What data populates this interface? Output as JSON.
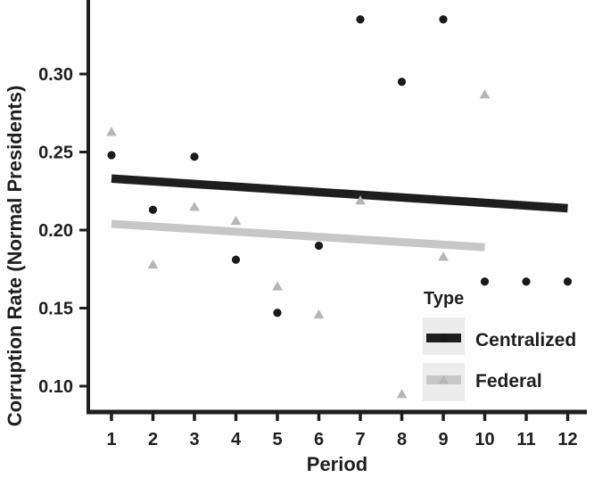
{
  "chart_data": {
    "type": "scatter",
    "title": "",
    "xlabel": "Period",
    "ylabel": "Corruption Rate (Normal Presidents)",
    "xlim": [
      0.46,
      12.33
    ],
    "ylim": [
      0.083,
      0.347
    ],
    "grid": false,
    "axis_color": "#1e1e1e",
    "x_ticks": [
      1,
      2,
      3,
      4,
      5,
      6,
      7,
      8,
      9,
      10,
      11,
      12
    ],
    "x_tick_labels": [
      "1",
      "2",
      "3",
      "4",
      "5",
      "6",
      "7",
      "8",
      "9",
      "10",
      "11",
      "12"
    ],
    "y_ticks": [
      0.1,
      0.15,
      0.2,
      0.25,
      0.3
    ],
    "y_tick_labels": [
      "0.10",
      "0.15",
      "0.20",
      "0.25",
      "0.30"
    ],
    "legend": {
      "title": "Type",
      "position": "inside bottom-right",
      "key_background": "#ececec",
      "entries": [
        {
          "name": "Centralized",
          "marker": "circle",
          "color": "#1a1a1a",
          "line_color": "#1e1e1e"
        },
        {
          "name": "Federal",
          "marker": "triangle",
          "color": "#b6b6b6",
          "line_color": "#c7c7c7"
        }
      ]
    },
    "series": [
      {
        "name": "Centralized",
        "marker": "circle",
        "color": "#1a1a1a",
        "x": [
          1,
          2,
          3,
          4,
          5,
          6,
          7,
          8,
          9,
          10,
          11,
          12
        ],
        "y": [
          0.248,
          0.213,
          0.247,
          0.181,
          0.147,
          0.19,
          0.335,
          0.295,
          0.335,
          0.167,
          0.167,
          0.167
        ],
        "trend": {
          "x": [
            1,
            12
          ],
          "y": [
            0.233,
            0.214
          ],
          "color": "#1e1e1e"
        }
      },
      {
        "name": "Federal",
        "marker": "triangle",
        "color": "#b6b6b6",
        "x": [
          1,
          2,
          3,
          4,
          5,
          6,
          7,
          8,
          9,
          10
        ],
        "y": [
          0.263,
          0.178,
          0.215,
          0.206,
          0.164,
          0.146,
          0.219,
          0.095,
          0.183,
          0.287
        ],
        "trend": {
          "x": [
            1,
            10
          ],
          "y": [
            0.204,
            0.189
          ],
          "color": "#c7c7c7"
        }
      }
    ]
  }
}
